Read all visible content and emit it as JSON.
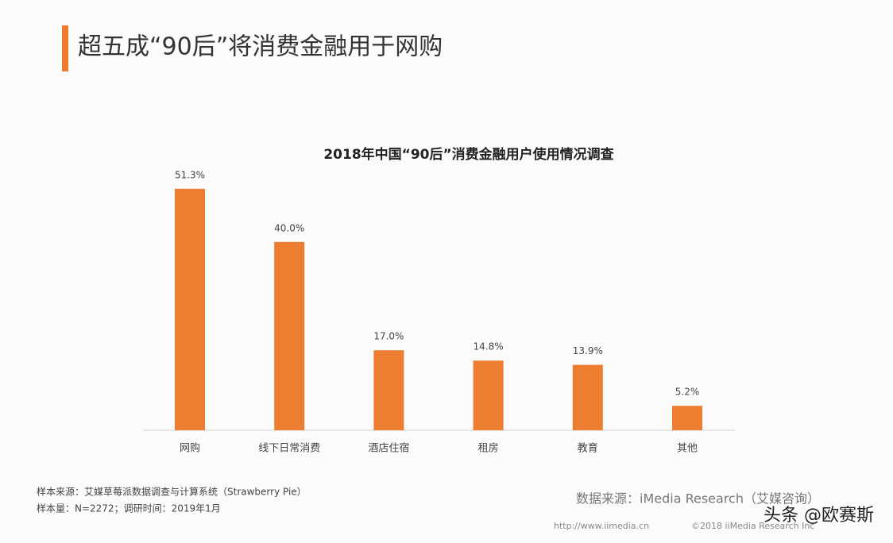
{
  "header": {
    "title": "超五成“90后”将消费金融用于网购"
  },
  "chart_data": {
    "type": "bar",
    "title": "2018年中国“90后”消费金融用户使用情况调查",
    "categories": [
      "网购",
      "线下日常消费",
      "酒店住宿",
      "租房",
      "教育",
      "其他"
    ],
    "values": [
      51.3,
      40.0,
      17.0,
      14.8,
      13.9,
      5.2
    ],
    "value_labels": [
      "51.3%",
      "40.0%",
      "17.0%",
      "14.8%",
      "13.9%",
      "5.2%"
    ],
    "color": "#ed7d31"
  },
  "footer": {
    "sample_source": "样本来源：艾媒草莓派数据调查与计算系统（Strawberry Pie）",
    "sample_size": "样本量：N=2272；调研时间：2019年1月",
    "data_source": "数据来源：iMedia Research（艾媒咨询）",
    "website": "http://www.iimedia.cn",
    "copyright": "©2018 iiMedia Research Inc",
    "watermark": "头条 @欧赛斯"
  }
}
